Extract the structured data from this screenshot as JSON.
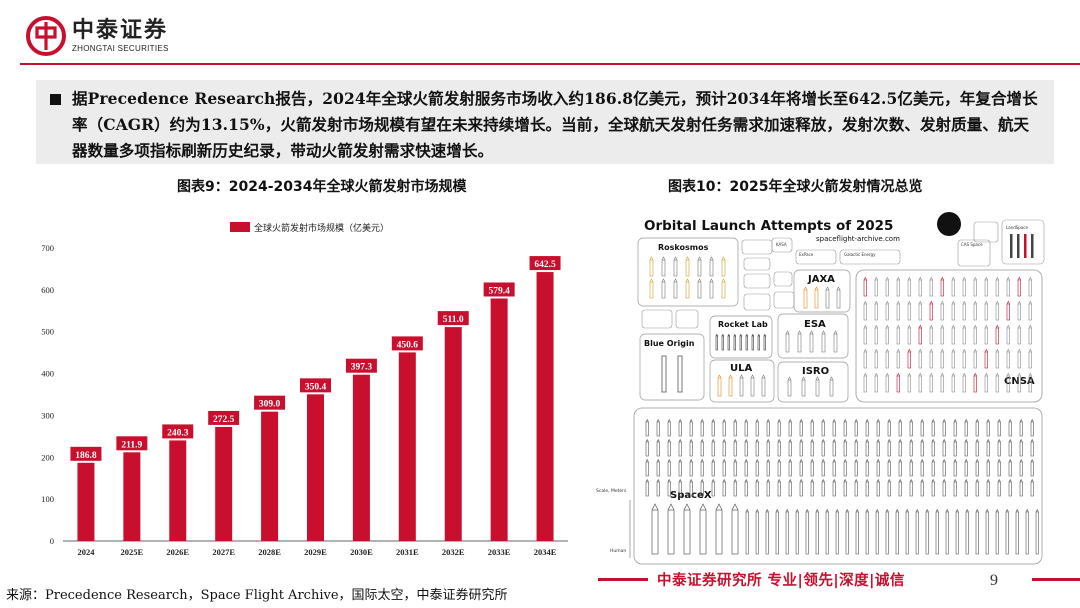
{
  "brand": {
    "name_cn": "中泰证券",
    "name_en": "ZHONGTAI SECURITIES",
    "color": "#c8102e"
  },
  "summary": {
    "text": "据Precedence Research报告，2024年全球火箭发射服务市场收入约186.8亿美元，预计2034年将增长至642.5亿美元，年复合增长率（CAGR）约为13.15%，火箭发射市场规模有望在未来持续增长。当前，全球航天发射任务需求加速释放，发射次数、发射质量、航天器数量多项指标刷新历史纪录，带动火箭发射需求快速增长。"
  },
  "figure9": {
    "title": "图表9：2024-2034年全球火箭发射市场规模"
  },
  "figure10": {
    "title": "图表10：2025年全球火箭发射情况总览"
  },
  "chart_data": {
    "type": "bar",
    "title": "图表9：2024-2034年全球火箭发射市场规模",
    "legend": "全球火箭发射市场规模（亿美元）",
    "legend_position": "top",
    "categories": [
      "2024",
      "2025E",
      "2026E",
      "2027E",
      "2028E",
      "2029E",
      "2030E",
      "2031E",
      "2032E",
      "2033E",
      "2034E"
    ],
    "values": [
      186.8,
      211.9,
      240.3,
      272.5,
      309.0,
      350.4,
      397.3,
      450.6,
      511.0,
      579.4,
      642.5
    ],
    "value_labels": [
      "186.8",
      "211.9",
      "240.3",
      "272.5",
      "309.0",
      "350.4",
      "397.3",
      "450.6",
      "511.0",
      "579.4",
      "642.5"
    ],
    "yticks": [
      0,
      100,
      200,
      300,
      400,
      500,
      600,
      700
    ],
    "ylim": [
      0,
      700
    ],
    "grid": false,
    "bar_color": "#c8102e",
    "xlabel": "",
    "ylabel": ""
  },
  "launch_graphic": {
    "title": "Orbital Launch Attempts of 2025",
    "subtitle": "spaceflight-archive.com",
    "groups": [
      "Roskosmos",
      "JAXA",
      "Rocket Lab",
      "ESA",
      "Blue Origin",
      "ULA",
      "ISRO",
      "CNSA",
      "SpaceX",
      "LandSpace",
      "KASA",
      "ExPace",
      "CAS Space",
      "Galactic Energy"
    ],
    "scale_label": "Scale, Meters",
    "human_label": "Human"
  },
  "footer": {
    "source": "来源：Precedence Research，Space Flight Archive，国际太空，中泰证券研究所",
    "brand": "中泰证券研究所 专业|领先|深度|诚信",
    "page": "9"
  }
}
